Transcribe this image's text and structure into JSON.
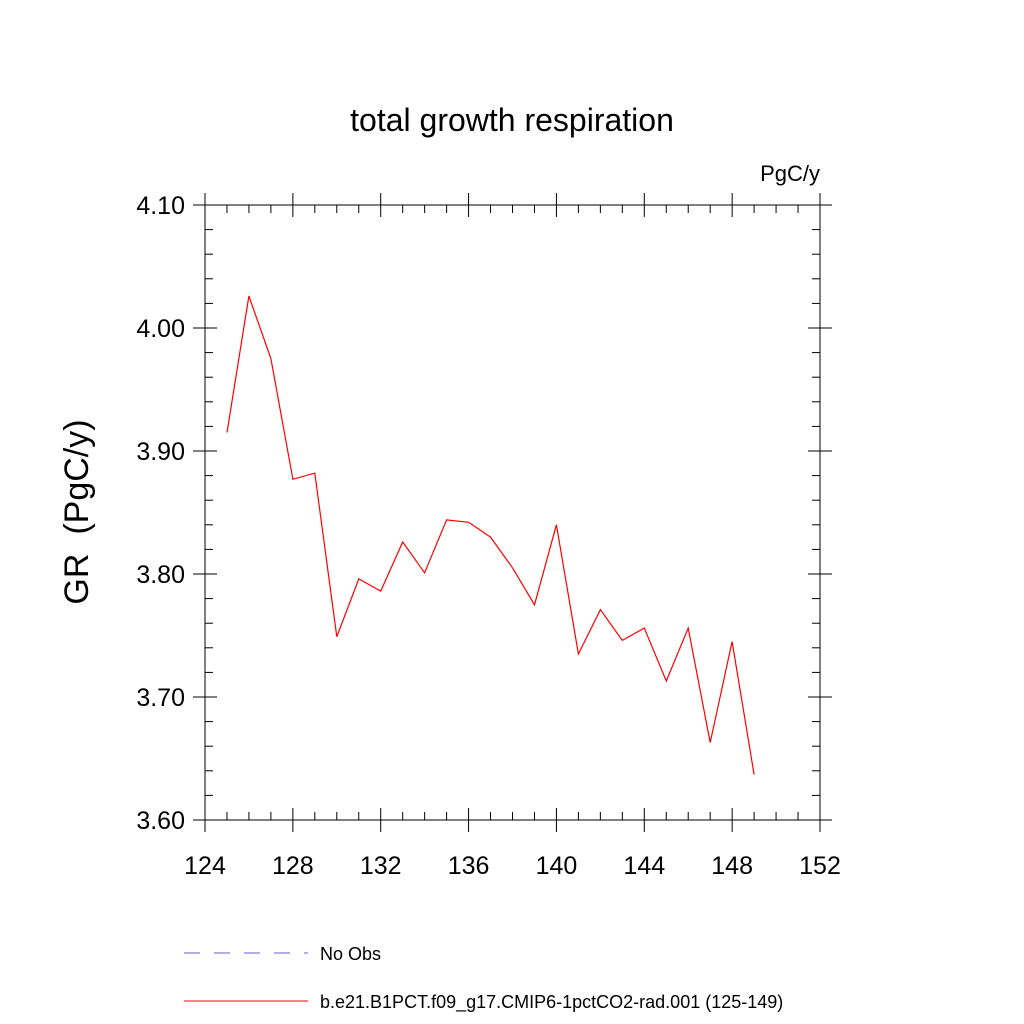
{
  "chart_data": {
    "type": "line",
    "title": "total growth respiration",
    "units_label": "PgC/y",
    "ylabel": "GR  (PgC/y)",
    "xlabel": "",
    "xlim": [
      124,
      152
    ],
    "ylim": [
      3.6,
      4.1
    ],
    "x_ticks": [
      124,
      128,
      132,
      136,
      140,
      144,
      148,
      152
    ],
    "x_tick_labels": [
      "124",
      "128",
      "132",
      "136",
      "140",
      "144",
      "148",
      "152"
    ],
    "y_ticks": [
      3.6,
      3.7,
      3.8,
      3.9,
      4.0,
      4.1
    ],
    "y_tick_labels": [
      "3.60",
      "3.70",
      "3.80",
      "3.90",
      "4.00",
      "4.10"
    ],
    "grid": false,
    "legend_position": "bottom",
    "series": [
      {
        "name": "b.e21.B1PCT.f09_g17.CMIP6-1pctCO2-rad.001 (125-149)",
        "color": "#ff0000",
        "style": "solid",
        "x": [
          125,
          126,
          127,
          128,
          129,
          130,
          131,
          132,
          133,
          134,
          135,
          136,
          137,
          138,
          139,
          140,
          141,
          142,
          143,
          144,
          145,
          146,
          147,
          148,
          149
        ],
        "y": [
          3.915,
          4.026,
          3.975,
          3.877,
          3.882,
          3.749,
          3.796,
          3.786,
          3.826,
          3.801,
          3.844,
          3.842,
          3.83,
          3.805,
          3.775,
          3.84,
          3.735,
          3.771,
          3.746,
          3.756,
          3.713,
          3.756,
          3.663,
          3.745,
          3.637
        ]
      }
    ],
    "legend": [
      {
        "label": "No Obs",
        "color": "#6a5acd",
        "style": "dashed"
      },
      {
        "label": "b.e21.B1PCT.f09_g17.CMIP6-1pctCO2-rad.001 (125-149)",
        "color": "#ff0000",
        "style": "solid"
      }
    ]
  }
}
